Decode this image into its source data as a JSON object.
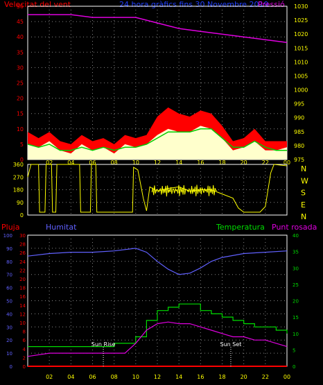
{
  "header": {
    "left": "Velocitat del vent",
    "center": "24 hora gràfics fins 30 Novembre 2019",
    "right": "Pressió"
  },
  "colors": {
    "wind": "#ff0000",
    "gust": "#ff0000",
    "avg_wind": "#00cc00",
    "pressure": "#e000e0",
    "direction": "#ffff00",
    "rain": "#ff0000",
    "humidity": "#6060ff",
    "temperature": "#00dd00",
    "dewpoint": "#e000e0",
    "axis_left": "#ff0000",
    "axis_right": "#ffff00",
    "axis_humidity": "#6060ff",
    "axis_temp": "#00dd00",
    "hours": "#ffff00"
  },
  "chart_data": [
    {
      "type": "area",
      "name": "wind-panel",
      "left_axis": {
        "ticks": [
          "0",
          "5",
          "10",
          "15",
          "20",
          "25",
          "30",
          "35",
          "40",
          "45",
          "50"
        ],
        "range": [
          0,
          50
        ]
      },
      "right_axis": {
        "ticks": [
          "975",
          "980",
          "985",
          "990",
          "995",
          "1000",
          "1005",
          "1010",
          "1015",
          "1020",
          "1025",
          "1030"
        ],
        "range": [
          975,
          1030
        ]
      },
      "x_ticks": [
        "02",
        "04",
        "06",
        "08",
        "10",
        "12",
        "14",
        "16",
        "18",
        "20",
        "22",
        "00"
      ],
      "x_hours": [
        0,
        24
      ],
      "wind_speed": [
        [
          0,
          5
        ],
        [
          1,
          4
        ],
        [
          2,
          6
        ],
        [
          3,
          3
        ],
        [
          4,
          2
        ],
        [
          5,
          5
        ],
        [
          6,
          3
        ],
        [
          7,
          4
        ],
        [
          8,
          2
        ],
        [
          9,
          5
        ],
        [
          10,
          4
        ],
        [
          11,
          5
        ],
        [
          12,
          8
        ],
        [
          13,
          10
        ],
        [
          14,
          9
        ],
        [
          15,
          9
        ],
        [
          16,
          11
        ],
        [
          17,
          10
        ],
        [
          18,
          7
        ],
        [
          19,
          3
        ],
        [
          20,
          4
        ],
        [
          21,
          6
        ],
        [
          22,
          3
        ],
        [
          23,
          3
        ],
        [
          24,
          4
        ]
      ],
      "wind_gust": [
        [
          0,
          9
        ],
        [
          1,
          7
        ],
        [
          2,
          9
        ],
        [
          3,
          6
        ],
        [
          4,
          5
        ],
        [
          5,
          8
        ],
        [
          6,
          6
        ],
        [
          7,
          7
        ],
        [
          8,
          5
        ],
        [
          9,
          8
        ],
        [
          10,
          7
        ],
        [
          11,
          8
        ],
        [
          12,
          14
        ],
        [
          13,
          17
        ],
        [
          14,
          15
        ],
        [
          15,
          14
        ],
        [
          16,
          16
        ],
        [
          17,
          15
        ],
        [
          18,
          11
        ],
        [
          19,
          6
        ],
        [
          20,
          7
        ],
        [
          21,
          10
        ],
        [
          22,
          6
        ],
        [
          23,
          6
        ],
        [
          24,
          6
        ]
      ],
      "avg_wind": [
        [
          0,
          5
        ],
        [
          1,
          4
        ],
        [
          2,
          5
        ],
        [
          3,
          3
        ],
        [
          4,
          3
        ],
        [
          5,
          4
        ],
        [
          6,
          3
        ],
        [
          7,
          4
        ],
        [
          8,
          3
        ],
        [
          9,
          4
        ],
        [
          10,
          4
        ],
        [
          11,
          5
        ],
        [
          12,
          7
        ],
        [
          13,
          9
        ],
        [
          14,
          9
        ],
        [
          15,
          9
        ],
        [
          16,
          10
        ],
        [
          17,
          10
        ],
        [
          18,
          7
        ],
        [
          19,
          4
        ],
        [
          20,
          4
        ],
        [
          21,
          6
        ],
        [
          22,
          4
        ],
        [
          23,
          3
        ],
        [
          24,
          3
        ]
      ],
      "pressure": [
        [
          0,
          1027
        ],
        [
          2,
          1027
        ],
        [
          4,
          1027
        ],
        [
          6,
          1026
        ],
        [
          8,
          1026
        ],
        [
          10,
          1026
        ],
        [
          11,
          1025
        ],
        [
          12,
          1024
        ],
        [
          13,
          1023
        ],
        [
          14,
          1022
        ],
        [
          16,
          1021
        ],
        [
          18,
          1020
        ],
        [
          20,
          1019
        ],
        [
          22,
          1018
        ],
        [
          24,
          1017
        ]
      ]
    },
    {
      "type": "line",
      "name": "direction-panel",
      "left_axis": {
        "ticks": [
          "0",
          "90",
          "180",
          "270",
          "360"
        ],
        "range": [
          0,
          360
        ]
      },
      "right_labels": [
        "N",
        "W",
        "S",
        "E",
        "N"
      ],
      "direction": [
        [
          0,
          270
        ],
        [
          0.3,
          360
        ],
        [
          1,
          360
        ],
        [
          1.1,
          20
        ],
        [
          1.6,
          20
        ],
        [
          1.7,
          360
        ],
        [
          2.2,
          360
        ],
        [
          2.3,
          20
        ],
        [
          2.6,
          20
        ],
        [
          2.7,
          360
        ],
        [
          4.8,
          360
        ],
        [
          4.9,
          20
        ],
        [
          5.8,
          20
        ],
        [
          5.9,
          360
        ],
        [
          6.3,
          360
        ],
        [
          6.4,
          20
        ],
        [
          9.7,
          20
        ],
        [
          9.8,
          340
        ],
        [
          10.2,
          320
        ],
        [
          10.5,
          200
        ],
        [
          10.7,
          120
        ],
        [
          11,
          30
        ],
        [
          11.3,
          200
        ],
        [
          12,
          170
        ],
        [
          13,
          190
        ],
        [
          14,
          200
        ],
        [
          15,
          170
        ],
        [
          16,
          180
        ],
        [
          17,
          180
        ],
        [
          18,
          150
        ],
        [
          19,
          120
        ],
        [
          19.5,
          50
        ],
        [
          20,
          20
        ],
        [
          21.5,
          20
        ],
        [
          22,
          60
        ],
        [
          22.5,
          300
        ],
        [
          22.8,
          360
        ],
        [
          24,
          350
        ]
      ]
    },
    {
      "type": "line",
      "name": "temp-panel",
      "left_labels": {
        "rain": "Pluja",
        "humidity": "Humitat"
      },
      "right_labels": {
        "temperature": "Temperatura",
        "dewpoint": "Punt rosada"
      },
      "rain_axis": {
        "ticks": [
          "0",
          "2",
          "4",
          "6",
          "8",
          "10",
          "12",
          "14",
          "16",
          "18",
          "20",
          "22",
          "24",
          "26",
          "28",
          "30"
        ],
        "range": [
          0,
          30
        ]
      },
      "humidity_axis": {
        "ticks": [
          "0",
          "10",
          "20",
          "30",
          "40",
          "50",
          "60",
          "70",
          "80",
          "90",
          "100"
        ],
        "range": [
          0,
          100
        ]
      },
      "temp_axis": {
        "ticks": [
          "0",
          "5",
          "10",
          "15",
          "20",
          "25",
          "30",
          "35",
          "40"
        ],
        "range": [
          0,
          40
        ]
      },
      "x_ticks": [
        "02",
        "04",
        "06",
        "08",
        "10",
        "12",
        "14",
        "16",
        "18",
        "20",
        "22",
        "00"
      ],
      "annotations": [
        {
          "text": "Sun Rise",
          "hour": 7.0
        },
        {
          "text": "Sun Set",
          "hour": 18.8
        }
      ],
      "humidity": [
        [
          0,
          84
        ],
        [
          2,
          86
        ],
        [
          4,
          87
        ],
        [
          6,
          87
        ],
        [
          8,
          88
        ],
        [
          10,
          90
        ],
        [
          11,
          87
        ],
        [
          12,
          80
        ],
        [
          13,
          74
        ],
        [
          14,
          70
        ],
        [
          15,
          71
        ],
        [
          16,
          75
        ],
        [
          17,
          80
        ],
        [
          18,
          83
        ],
        [
          20,
          86
        ],
        [
          22,
          87
        ],
        [
          24,
          88
        ]
      ],
      "temperature": [
        [
          0,
          6
        ],
        [
          2,
          6
        ],
        [
          4,
          6
        ],
        [
          6,
          6
        ],
        [
          8,
          7
        ],
        [
          9,
          7
        ],
        [
          10,
          9
        ],
        [
          11,
          14
        ],
        [
          12,
          17
        ],
        [
          13,
          18
        ],
        [
          14,
          19
        ],
        [
          15,
          19
        ],
        [
          16,
          17
        ],
        [
          17,
          16
        ],
        [
          18,
          15
        ],
        [
          19,
          14
        ],
        [
          20,
          13
        ],
        [
          21,
          12
        ],
        [
          22,
          12
        ],
        [
          23,
          11
        ],
        [
          24,
          10
        ]
      ],
      "dewpoint": [
        [
          0,
          3
        ],
        [
          2,
          4
        ],
        [
          4,
          4
        ],
        [
          6,
          4
        ],
        [
          8,
          4
        ],
        [
          9,
          4
        ],
        [
          10,
          7
        ],
        [
          11,
          11
        ],
        [
          12,
          13
        ],
        [
          13,
          13.5
        ],
        [
          14,
          13
        ],
        [
          15,
          13
        ],
        [
          16,
          12
        ],
        [
          17,
          11
        ],
        [
          18,
          10
        ],
        [
          19,
          9
        ],
        [
          20,
          9
        ],
        [
          21,
          8
        ],
        [
          22,
          8
        ],
        [
          23,
          7
        ],
        [
          24,
          6
        ]
      ],
      "rain": [
        [
          0,
          0
        ],
        [
          24,
          0
        ]
      ]
    }
  ]
}
